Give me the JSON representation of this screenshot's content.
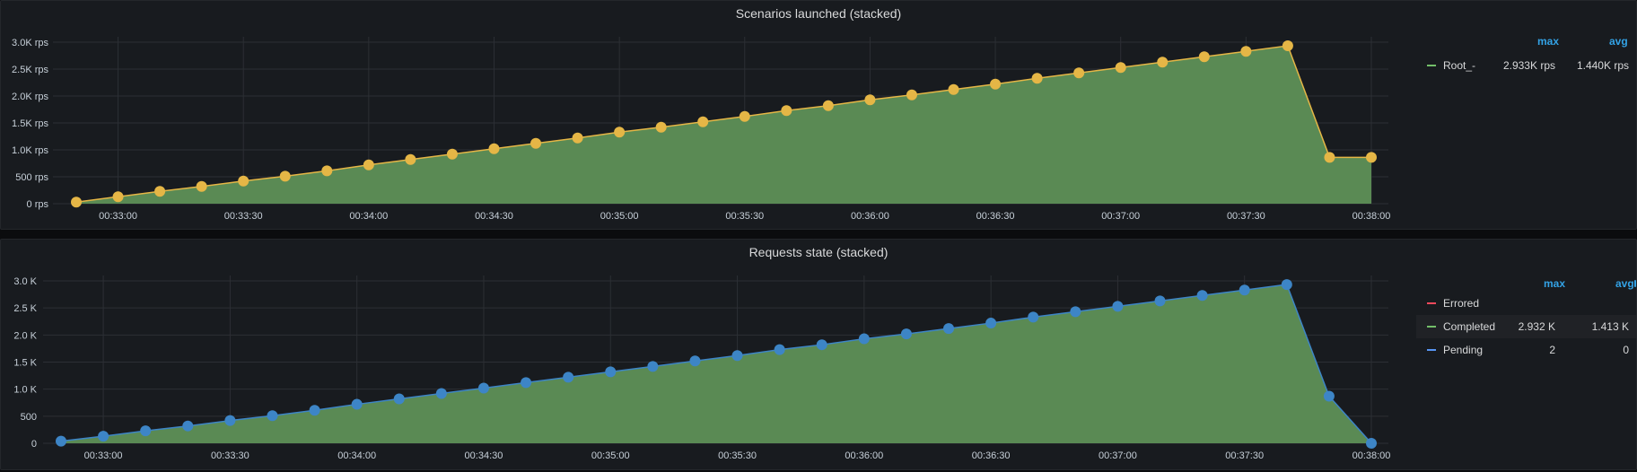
{
  "panels": {
    "scenarios": {
      "title": "Scenarios launched (stacked)",
      "legend": {
        "max_label": "max",
        "avg_label": "avg",
        "series": [
          {
            "name": "Root_-",
            "max": "2.933K rps",
            "avg": "1.440K rps",
            "color": "#73bf69"
          }
        ]
      }
    },
    "requests": {
      "title": "Requests state (stacked)",
      "legend": {
        "max_label": "max",
        "avg_label": "avg",
        "series": [
          {
            "name": "Errored",
            "max": "",
            "avg": "",
            "color": "#f2495c"
          },
          {
            "name": "Completed",
            "max": "2.932 K",
            "avg": "1.413 K",
            "color": "#73bf69"
          },
          {
            "name": "Pending",
            "max": "2",
            "avg": "0",
            "color": "#5794f2"
          }
        ]
      }
    }
  },
  "chart_data": [
    {
      "type": "area",
      "title": "Scenarios launched (stacked)",
      "x": [
        "00:32:50",
        "00:33:00",
        "00:33:10",
        "00:33:20",
        "00:33:30",
        "00:33:40",
        "00:33:50",
        "00:34:00",
        "00:34:10",
        "00:34:20",
        "00:34:30",
        "00:34:40",
        "00:34:50",
        "00:35:00",
        "00:35:10",
        "00:35:20",
        "00:35:30",
        "00:35:40",
        "00:35:50",
        "00:36:00",
        "00:36:10",
        "00:36:20",
        "00:36:30",
        "00:36:40",
        "00:36:50",
        "00:37:00",
        "00:37:10",
        "00:37:20",
        "00:37:30",
        "00:37:40",
        "00:37:50",
        "00:38:00"
      ],
      "x_ticks": [
        "00:33:00",
        "00:33:30",
        "00:34:00",
        "00:34:30",
        "00:35:00",
        "00:35:30",
        "00:36:00",
        "00:36:30",
        "00:37:00",
        "00:37:30",
        "00:38:00"
      ],
      "y_ticks": [
        "0 rps",
        "500 rps",
        "1.0K rps",
        "1.5K rps",
        "2.0K rps",
        "2.5K rps",
        "3.0K rps"
      ],
      "ylim": [
        0,
        3000
      ],
      "grid": true,
      "legend_position": "right",
      "series": [
        {
          "name": "Root_-",
          "line_color": "#e5b646",
          "fill_color": "#5a8a54",
          "values": [
            30,
            130,
            230,
            320,
            420,
            510,
            610,
            720,
            820,
            920,
            1020,
            1120,
            1220,
            1330,
            1420,
            1520,
            1620,
            1730,
            1820,
            1930,
            2020,
            2120,
            2220,
            2330,
            2430,
            2530,
            2630,
            2730,
            2830,
            2933,
            860,
            860
          ]
        }
      ]
    },
    {
      "type": "area",
      "title": "Requests state (stacked)",
      "x": [
        "00:32:50",
        "00:33:00",
        "00:33:10",
        "00:33:20",
        "00:33:30",
        "00:33:40",
        "00:33:50",
        "00:34:00",
        "00:34:10",
        "00:34:20",
        "00:34:30",
        "00:34:40",
        "00:34:50",
        "00:35:00",
        "00:35:10",
        "00:35:20",
        "00:35:30",
        "00:35:40",
        "00:35:50",
        "00:36:00",
        "00:36:10",
        "00:36:20",
        "00:36:30",
        "00:36:40",
        "00:36:50",
        "00:37:00",
        "00:37:10",
        "00:37:20",
        "00:37:30",
        "00:37:40",
        "00:37:50",
        "00:38:00"
      ],
      "x_ticks": [
        "00:33:00",
        "00:33:30",
        "00:34:00",
        "00:34:30",
        "00:35:00",
        "00:35:30",
        "00:36:00",
        "00:36:30",
        "00:37:00",
        "00:37:30",
        "00:38:00"
      ],
      "y_ticks": [
        "0",
        "500",
        "1.0 K",
        "1.5 K",
        "2.0 K",
        "2.5 K",
        "3.0 K"
      ],
      "ylim": [
        0,
        3000
      ],
      "grid": true,
      "legend_position": "right",
      "series": [
        {
          "name": "Completed",
          "line_color": "#3d85c6",
          "fill_color": "#5a8a54",
          "values": [
            40,
            130,
            230,
            320,
            420,
            510,
            610,
            720,
            820,
            920,
            1020,
            1120,
            1220,
            1320,
            1420,
            1520,
            1620,
            1730,
            1820,
            1930,
            2020,
            2120,
            2220,
            2330,
            2430,
            2530,
            2630,
            2730,
            2830,
            2932,
            870,
            0
          ]
        }
      ]
    }
  ]
}
